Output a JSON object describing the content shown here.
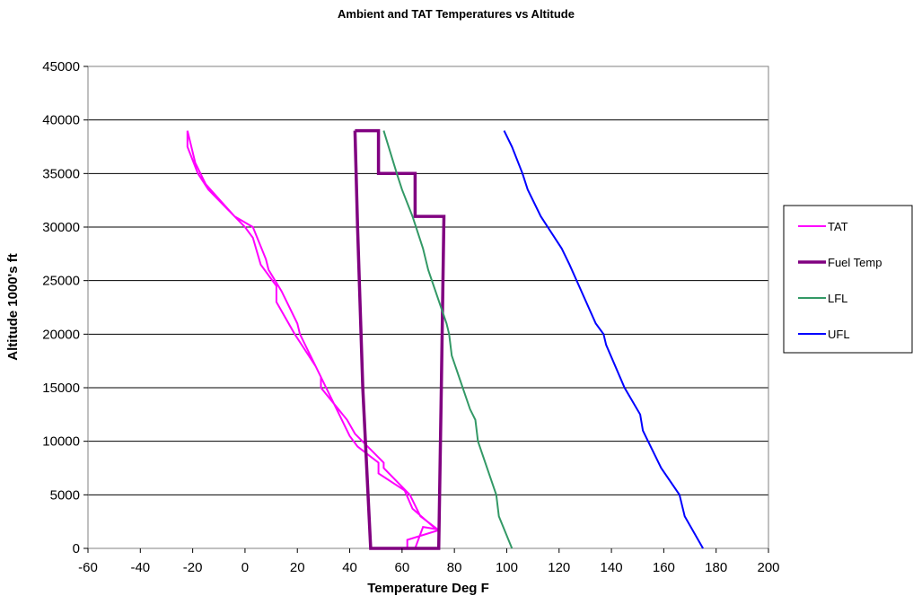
{
  "chart_data": {
    "type": "line",
    "title": "Ambient and TAT Temperatures vs Altitude",
    "xlabel": "Temperature Deg F",
    "ylabel": "Altitude 1000's ft",
    "xlim": [
      -60,
      200
    ],
    "ylim": [
      0,
      45000
    ],
    "xticks": [
      -60,
      -40,
      -20,
      0,
      20,
      40,
      60,
      80,
      100,
      120,
      140,
      160,
      180,
      200
    ],
    "yticks": [
      0,
      5000,
      10000,
      15000,
      20000,
      25000,
      30000,
      35000,
      40000,
      45000
    ],
    "grid": "horizontal major gridlines",
    "legend_position": "right",
    "series": [
      {
        "name": "TAT",
        "color": "#ff00ff",
        "points": [
          [
            -22,
            39000
          ],
          [
            -22,
            37500
          ],
          [
            -18,
            35000
          ],
          [
            -14,
            33500
          ],
          [
            -4,
            31000
          ],
          [
            3,
            30000
          ],
          [
            8,
            27000
          ],
          [
            9,
            26000
          ],
          [
            14,
            24000
          ],
          [
            20,
            21000
          ],
          [
            21,
            20000
          ],
          [
            29,
            16000
          ],
          [
            29,
            15000
          ],
          [
            39,
            12000
          ],
          [
            42,
            10700
          ],
          [
            53,
            8000
          ],
          [
            53,
            7500
          ],
          [
            63,
            5000
          ],
          [
            67,
            3000
          ],
          [
            74,
            1700
          ],
          [
            62,
            800
          ],
          [
            62,
            0
          ],
          [
            65,
            0
          ],
          [
            68,
            2000
          ],
          [
            73,
            1800
          ],
          [
            64,
            3700
          ],
          [
            61,
            5400
          ],
          [
            51,
            7000
          ],
          [
            51,
            8000
          ],
          [
            43,
            9500
          ],
          [
            40,
            10500
          ],
          [
            37,
            12000
          ],
          [
            27,
            17000
          ],
          [
            19,
            20000
          ],
          [
            12,
            23000
          ],
          [
            12,
            24500
          ],
          [
            6,
            26500
          ],
          [
            3,
            29000
          ],
          [
            0,
            30000
          ],
          [
            -4,
            31000
          ],
          [
            -15,
            34000
          ],
          [
            -19,
            36000
          ],
          [
            -21,
            38000
          ],
          [
            -22,
            39000
          ]
        ]
      },
      {
        "name": "Fuel Temp",
        "color": "#800080",
        "points": [
          [
            42,
            39000
          ],
          [
            51,
            39000
          ],
          [
            51,
            35000
          ],
          [
            65,
            35000
          ],
          [
            65,
            31000
          ],
          [
            76,
            31000
          ],
          [
            75,
            15000
          ],
          [
            74,
            0
          ],
          [
            48,
            0
          ],
          [
            45,
            15000
          ],
          [
            43,
            30000
          ],
          [
            42,
            39000
          ]
        ]
      },
      {
        "name": "LFL",
        "color": "#339966",
        "points": [
          [
            53,
            39000
          ],
          [
            58,
            35000
          ],
          [
            60,
            33500
          ],
          [
            64,
            31000
          ],
          [
            68,
            28000
          ],
          [
            69,
            27000
          ],
          [
            70,
            26000
          ],
          [
            77,
            21000
          ],
          [
            78,
            20000
          ],
          [
            79,
            18000
          ],
          [
            86,
            13000
          ],
          [
            88,
            12000
          ],
          [
            89,
            10000
          ],
          [
            96,
            5000
          ],
          [
            97,
            3000
          ],
          [
            102,
            0
          ]
        ]
      },
      {
        "name": "UFL",
        "color": "#0000ff",
        "points": [
          [
            99,
            39000
          ],
          [
            102,
            37500
          ],
          [
            106,
            35000
          ],
          [
            108,
            33500
          ],
          [
            113,
            31000
          ],
          [
            121,
            28000
          ],
          [
            123,
            27000
          ],
          [
            124,
            26500
          ],
          [
            134,
            21000
          ],
          [
            137,
            20000
          ],
          [
            138,
            19000
          ],
          [
            145,
            15000
          ],
          [
            151,
            12500
          ],
          [
            152,
            11000
          ],
          [
            153,
            10500
          ],
          [
            159,
            7500
          ],
          [
            166,
            5000
          ],
          [
            167,
            4000
          ],
          [
            168,
            3000
          ],
          [
            175,
            0
          ]
        ]
      }
    ]
  }
}
